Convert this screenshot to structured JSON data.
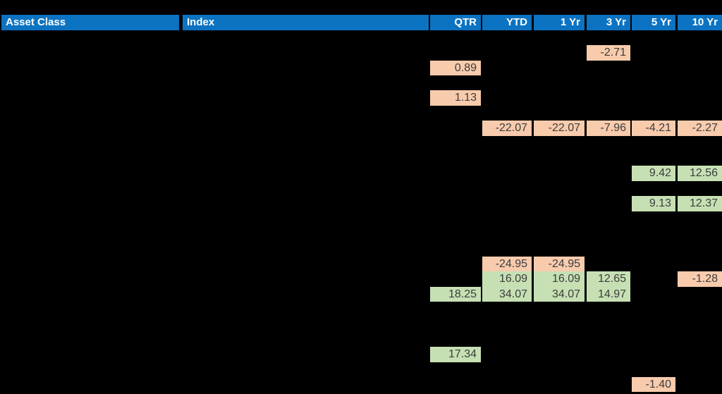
{
  "palette": {
    "page-bg": "#000000",
    "header-bg": "#0C73C2",
    "header-text": "#FFFFFF",
    "highlight-orange": "#F8CBAD",
    "highlight-green": "#C6E0B4",
    "cell-text": "#3C3C3C"
  },
  "chart_data": {
    "type": "table",
    "columns": [
      {
        "key": "asset",
        "label": "Asset Class"
      },
      {
        "key": "index",
        "label": "Index"
      },
      {
        "key": "qtr",
        "label": "QTR"
      },
      {
        "key": "ytd",
        "label": "YTD"
      },
      {
        "key": "yr1",
        "label": "1 Yr"
      },
      {
        "key": "yr3",
        "label": "3 Yr"
      },
      {
        "key": "yr5",
        "label": "5 Yr"
      },
      {
        "key": "yr10",
        "label": "10 Yr"
      }
    ],
    "cells": [
      {
        "row": 2,
        "col": "yr3",
        "value": "-2.71",
        "highlight": "orange"
      },
      {
        "row": 3,
        "col": "qtr",
        "value": "0.89",
        "highlight": "orange"
      },
      {
        "row": 5,
        "col": "qtr",
        "value": "1.13",
        "highlight": "orange"
      },
      {
        "row": 7,
        "col": "ytd",
        "value": "-22.07",
        "highlight": "orange"
      },
      {
        "row": 7,
        "col": "yr1",
        "value": "-22.07",
        "highlight": "orange"
      },
      {
        "row": 7,
        "col": "yr3",
        "value": "-7.96",
        "highlight": "orange"
      },
      {
        "row": 7,
        "col": "yr5",
        "value": "-4.21",
        "highlight": "orange"
      },
      {
        "row": 7,
        "col": "yr10",
        "value": "-2.27",
        "highlight": "orange"
      },
      {
        "row": 10,
        "col": "yr5",
        "value": "9.42",
        "highlight": "green"
      },
      {
        "row": 10,
        "col": "yr10",
        "value": "12.56",
        "highlight": "green"
      },
      {
        "row": 12,
        "col": "yr5",
        "value": "9.13",
        "highlight": "green"
      },
      {
        "row": 12,
        "col": "yr10",
        "value": "12.37",
        "highlight": "green"
      },
      {
        "row": 16,
        "col": "ytd",
        "value": "-24.95",
        "highlight": "orange"
      },
      {
        "row": 16,
        "col": "yr1",
        "value": "-24.95",
        "highlight": "orange"
      },
      {
        "row": 17,
        "col": "ytd",
        "value": "16.09",
        "highlight": "green"
      },
      {
        "row": 17,
        "col": "yr1",
        "value": "16.09",
        "highlight": "green"
      },
      {
        "row": 17,
        "col": "yr3",
        "value": "12.65",
        "highlight": "green"
      },
      {
        "row": 17,
        "col": "yr10",
        "value": "-1.28",
        "highlight": "orange"
      },
      {
        "row": 18,
        "col": "qtr",
        "value": "18.25",
        "highlight": "green"
      },
      {
        "row": 18,
        "col": "ytd",
        "value": "34.07",
        "highlight": "green"
      },
      {
        "row": 18,
        "col": "yr1",
        "value": "34.07",
        "highlight": "green"
      },
      {
        "row": 18,
        "col": "yr3",
        "value": "14.97",
        "highlight": "green"
      },
      {
        "row": 22,
        "col": "qtr",
        "value": "17.34",
        "highlight": "green"
      },
      {
        "row": 24,
        "col": "yr5",
        "value": "-1.40",
        "highlight": "orange"
      }
    ]
  }
}
